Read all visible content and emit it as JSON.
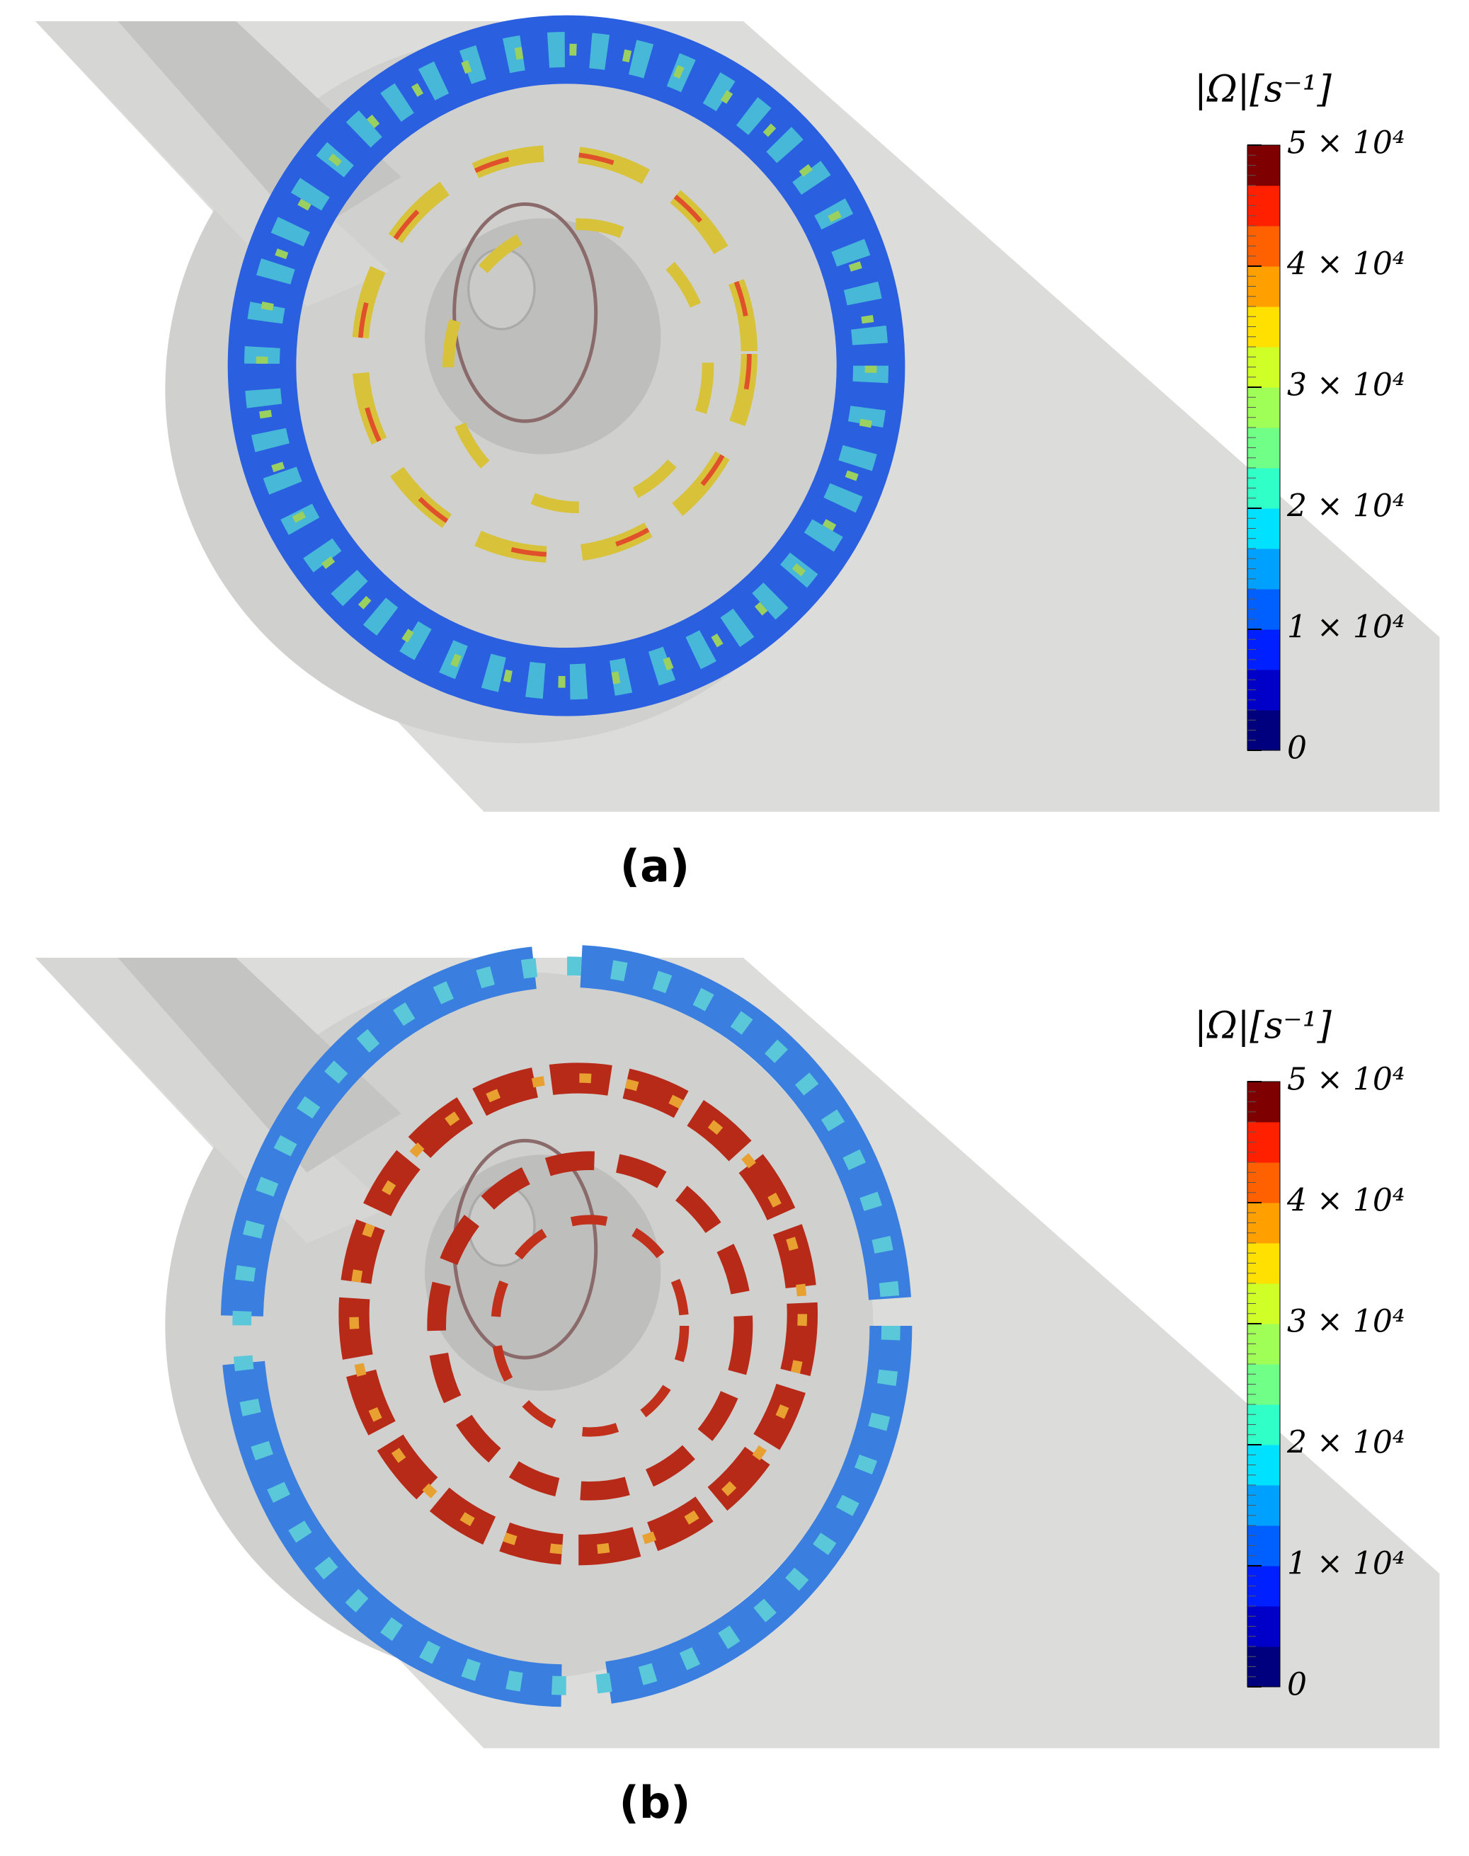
{
  "colormap": [
    "#00007f",
    "#0000c8",
    "#0020ff",
    "#0060ff",
    "#00a0ff",
    "#00e0ff",
    "#30ffc7",
    "#70ff87",
    "#a0ff57",
    "#d0ff27",
    "#ffe000",
    "#ffa000",
    "#ff6000",
    "#ff2000",
    "#7f0000"
  ],
  "panels": [
    {
      "label": "(a)",
      "colorbar": {
        "title": "|Ω|[s⁻¹]",
        "range": [
          0,
          50000
        ],
        "ticks": [
          {
            "value": 0,
            "label": "0"
          },
          {
            "value": 10000,
            "label": "1 × 10⁴"
          },
          {
            "value": 20000,
            "label": "2 × 10⁴"
          },
          {
            "value": 30000,
            "label": "3 × 10⁴"
          },
          {
            "value": 40000,
            "label": "4 × 10⁴"
          },
          {
            "value": 50000,
            "label": "5 × 10⁴"
          }
        ]
      }
    },
    {
      "label": "(b)",
      "colorbar": {
        "title": "|Ω|[s⁻¹]",
        "range": [
          0,
          50000
        ],
        "ticks": [
          {
            "value": 0,
            "label": "0"
          },
          {
            "value": 10000,
            "label": "1 × 10⁴"
          },
          {
            "value": 20000,
            "label": "2 × 10⁴"
          },
          {
            "value": 30000,
            "label": "3 × 10⁴"
          },
          {
            "value": 40000,
            "label": "4 × 10⁴"
          },
          {
            "value": 50000,
            "label": "5 × 10⁴"
          }
        ]
      }
    }
  ]
}
